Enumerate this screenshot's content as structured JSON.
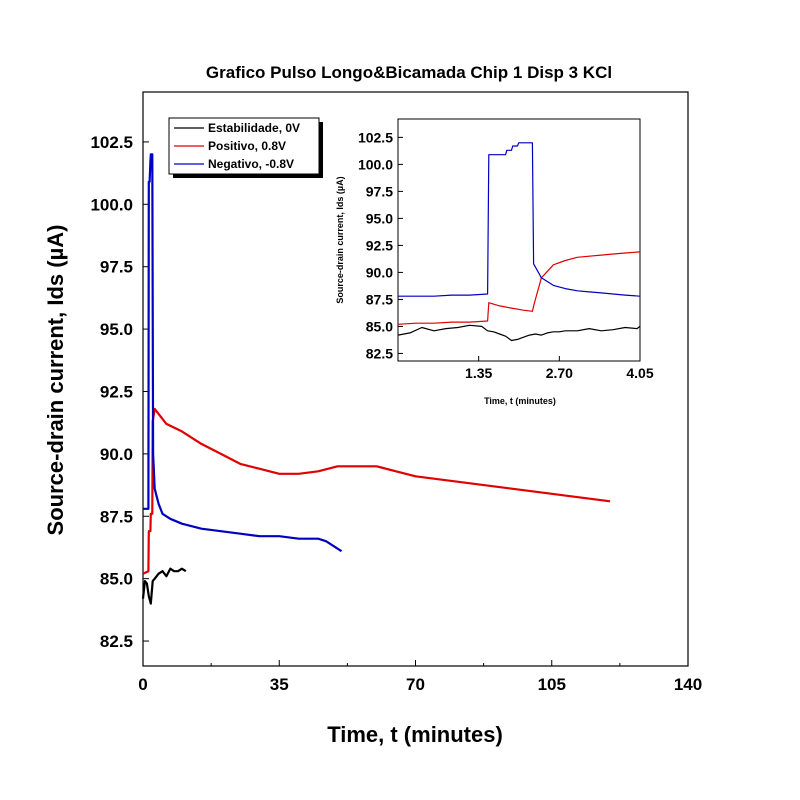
{
  "colors": {
    "estabilidade": "#000000",
    "positivo": "#e00000",
    "negativo": "#0000c0"
  },
  "chart_data": [
    {
      "type": "line",
      "title": "Grafico Pulso Longo&Bicamada Chip 1 Disp 3 KCl",
      "xlabel": "Time, t (minutes)",
      "ylabel": "Source-drain current, Ids (µA)",
      "xlim": [
        0,
        140
      ],
      "ylim": [
        81.5,
        104.5
      ],
      "xticks": [
        "0",
        "35",
        "70",
        "105",
        "140"
      ],
      "yticks": [
        "82.5",
        "85.0",
        "87.5",
        "90.0",
        "92.5",
        "95.0",
        "97.5",
        "100.0",
        "102.5"
      ],
      "legend_position": "top-left",
      "series": [
        {
          "name": "Estabilidade, 0V",
          "color": "#000000",
          "x": [
            0,
            0.5,
            1.0,
            1.5,
            2.0,
            2.5,
            3.0,
            4,
            5,
            6,
            7,
            8,
            9,
            10,
            11
          ],
          "y": [
            84.2,
            84.9,
            84.8,
            84.3,
            84.0,
            84.9,
            85.0,
            85.2,
            85.3,
            85.1,
            85.4,
            85.3,
            85.3,
            85.4,
            85.3
          ]
        },
        {
          "name": "Positivo, 0.8V",
          "color": "#e00000",
          "x": [
            0,
            1.4,
            1.5,
            1.9,
            2.0,
            2.4,
            2.5,
            3,
            4,
            6,
            10,
            15,
            20,
            25,
            30,
            35,
            40,
            45,
            50,
            55,
            60,
            65,
            70,
            75,
            80,
            85,
            90,
            95,
            100,
            105,
            110,
            115,
            120
          ],
          "y": [
            85.2,
            85.3,
            86.9,
            86.9,
            87.6,
            87.6,
            91.3,
            91.8,
            91.6,
            91.2,
            90.9,
            90.4,
            90.0,
            89.6,
            89.4,
            89.2,
            89.2,
            89.3,
            89.5,
            89.5,
            89.5,
            89.3,
            89.1,
            89.0,
            88.9,
            88.8,
            88.7,
            88.6,
            88.5,
            88.4,
            88.3,
            88.2,
            88.1
          ]
        },
        {
          "name": "Negativo, -0.8V",
          "color": "#0000c0",
          "x": [
            0,
            1.4,
            1.5,
            1.7,
            1.8,
            1.9,
            2.0,
            2.1,
            2.4,
            2.6,
            3,
            4,
            5,
            7,
            10,
            15,
            20,
            25,
            30,
            35,
            40,
            45,
            47,
            49,
            51
          ],
          "y": [
            87.8,
            87.8,
            100.9,
            100.9,
            101.3,
            101.7,
            102.0,
            102.0,
            102.0,
            90.0,
            88.6,
            88.0,
            87.6,
            87.4,
            87.2,
            87.0,
            86.9,
            86.8,
            86.7,
            86.7,
            86.6,
            86.6,
            86.5,
            86.3,
            86.1
          ]
        }
      ]
    },
    {
      "type": "line",
      "title": "",
      "xlabel": "Time, t (minutes)",
      "ylabel": "Source-drain current, Ids (µA)",
      "xlim": [
        0,
        4.05
      ],
      "ylim": [
        81.8,
        104.2
      ],
      "xticks": [
        "1.35",
        "2.70",
        "4.05"
      ],
      "yticks": [
        "82.5",
        "85.0",
        "87.5",
        "90.0",
        "92.5",
        "95.0",
        "97.5",
        "100.0",
        "102.5"
      ],
      "series": [
        {
          "name": "Estabilidade, 0V",
          "color": "#000000",
          "x": [
            0,
            0.2,
            0.4,
            0.6,
            0.8,
            1.0,
            1.2,
            1.4,
            1.5,
            1.6,
            1.7,
            1.8,
            1.9,
            2.0,
            2.1,
            2.2,
            2.3,
            2.4,
            2.5,
            2.6,
            2.7,
            2.8,
            3.0,
            3.2,
            3.4,
            3.6,
            3.8,
            4.0,
            4.05
          ],
          "y": [
            84.2,
            84.4,
            84.9,
            84.6,
            84.8,
            84.9,
            85.1,
            85.0,
            84.6,
            84.5,
            84.3,
            84.1,
            83.7,
            83.8,
            84.0,
            84.2,
            84.3,
            84.2,
            84.4,
            84.5,
            84.5,
            84.6,
            84.6,
            84.8,
            84.6,
            84.7,
            84.9,
            84.8,
            85.0
          ]
        },
        {
          "name": "Positivo, 0.8V",
          "color": "#e00000",
          "x": [
            0,
            0.3,
            0.6,
            0.9,
            1.2,
            1.5,
            1.52,
            1.7,
            1.9,
            2.1,
            2.25,
            2.28,
            2.4,
            2.6,
            2.8,
            3.0,
            3.2,
            3.4,
            3.6,
            3.8,
            4.05
          ],
          "y": [
            85.2,
            85.3,
            85.3,
            85.4,
            85.4,
            85.5,
            87.2,
            86.9,
            86.7,
            86.5,
            86.4,
            87.1,
            89.5,
            90.7,
            91.1,
            91.4,
            91.5,
            91.6,
            91.7,
            91.8,
            91.9
          ]
        },
        {
          "name": "Negativo, -0.8V",
          "color": "#0000c0",
          "x": [
            0,
            0.3,
            0.6,
            0.9,
            1.2,
            1.5,
            1.52,
            1.8,
            1.82,
            1.9,
            1.92,
            2.0,
            2.02,
            2.25,
            2.27,
            2.4,
            2.6,
            2.8,
            3.0,
            3.2,
            3.4,
            3.6,
            3.8,
            4.05
          ],
          "y": [
            87.8,
            87.8,
            87.8,
            87.9,
            87.9,
            88.0,
            100.9,
            100.9,
            101.3,
            101.3,
            101.7,
            101.7,
            102.0,
            102.0,
            90.8,
            89.5,
            88.8,
            88.5,
            88.3,
            88.2,
            88.1,
            88.0,
            87.9,
            87.8
          ]
        }
      ]
    }
  ]
}
